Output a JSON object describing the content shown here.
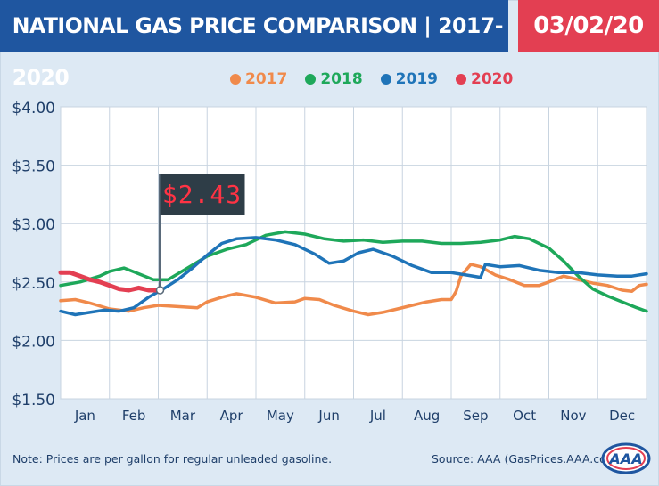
{
  "header": {
    "title": "NATIONAL GAS PRICE COMPARISON | 2017-2020",
    "date": "03/02/20"
  },
  "footer": {
    "note": "Note: Prices are per gallon for regular unleaded gasoline.",
    "source": "Source: AAA (GasPrices.AAA.com)",
    "logo_text": "AAA"
  },
  "colors": {
    "2017": "#f08a4b",
    "2018": "#1ea85a",
    "2019": "#1f74b8",
    "2020": "#e33f52",
    "header_blue": "#1f56a0",
    "header_red": "#e33f52"
  },
  "chart_data": {
    "type": "line",
    "title": "NATIONAL GAS PRICE COMPARISON | 2017-2020",
    "xlabel": "",
    "ylabel": "",
    "x_categories": [
      "Jan",
      "Feb",
      "Mar",
      "Apr",
      "May",
      "Jun",
      "Jul",
      "Aug",
      "Sep",
      "Oct",
      "Nov",
      "Dec"
    ],
    "x_range_months": [
      0,
      12
    ],
    "ylim": [
      1.5,
      4.0
    ],
    "y_ticks": [
      1.5,
      2.0,
      2.5,
      3.0,
      3.5,
      4.0
    ],
    "y_tick_labels": [
      "$1.50",
      "$2.00",
      "$2.50",
      "$3.00",
      "$3.50",
      "$4.00"
    ],
    "grid": true,
    "legend_position": "top-center",
    "series": [
      {
        "name": "2017",
        "color": "#f08a4b",
        "x": [
          0,
          0.3,
          0.6,
          1.0,
          1.4,
          1.7,
          2.0,
          2.4,
          2.8,
          3.0,
          3.3,
          3.6,
          4.0,
          4.4,
          4.8,
          5.0,
          5.3,
          5.6,
          6.0,
          6.3,
          6.6,
          6.9,
          7.2,
          7.5,
          7.8,
          8.0,
          8.1,
          8.2,
          8.4,
          8.6,
          8.9,
          9.2,
          9.5,
          9.8,
          10.0,
          10.3,
          10.6,
          10.9,
          11.2,
          11.5,
          11.7,
          11.85,
          12.0
        ],
        "values": [
          2.34,
          2.35,
          2.32,
          2.27,
          2.25,
          2.28,
          2.3,
          2.29,
          2.28,
          2.33,
          2.37,
          2.4,
          2.37,
          2.32,
          2.33,
          2.36,
          2.35,
          2.3,
          2.25,
          2.22,
          2.24,
          2.27,
          2.3,
          2.33,
          2.35,
          2.35,
          2.42,
          2.55,
          2.65,
          2.63,
          2.56,
          2.52,
          2.47,
          2.47,
          2.5,
          2.55,
          2.52,
          2.49,
          2.47,
          2.43,
          2.42,
          2.47,
          2.48
        ]
      },
      {
        "name": "2018",
        "color": "#1ea85a",
        "x": [
          0,
          0.4,
          0.8,
          1.0,
          1.3,
          1.6,
          1.9,
          2.2,
          2.6,
          3.0,
          3.4,
          3.8,
          4.2,
          4.6,
          5.0,
          5.4,
          5.8,
          6.2,
          6.6,
          7.0,
          7.4,
          7.8,
          8.2,
          8.6,
          9.0,
          9.3,
          9.6,
          10.0,
          10.3,
          10.6,
          10.9,
          11.2,
          11.5,
          11.8,
          12.0
        ],
        "values": [
          2.47,
          2.5,
          2.55,
          2.59,
          2.62,
          2.57,
          2.52,
          2.52,
          2.62,
          2.72,
          2.78,
          2.82,
          2.9,
          2.93,
          2.91,
          2.87,
          2.85,
          2.86,
          2.84,
          2.85,
          2.85,
          2.83,
          2.83,
          2.84,
          2.86,
          2.89,
          2.87,
          2.79,
          2.68,
          2.55,
          2.44,
          2.38,
          2.33,
          2.28,
          2.25
        ]
      },
      {
        "name": "2019",
        "color": "#1f74b8",
        "x": [
          0,
          0.3,
          0.6,
          0.9,
          1.2,
          1.5,
          1.8,
          2.1,
          2.4,
          2.7,
          3.0,
          3.3,
          3.6,
          4.0,
          4.4,
          4.8,
          5.2,
          5.5,
          5.8,
          6.1,
          6.4,
          6.8,
          7.2,
          7.6,
          8.0,
          8.3,
          8.6,
          8.7,
          9.0,
          9.4,
          9.8,
          10.2,
          10.6,
          11.0,
          11.4,
          11.7,
          12.0
        ],
        "values": [
          2.25,
          2.22,
          2.24,
          2.26,
          2.25,
          2.28,
          2.37,
          2.44,
          2.52,
          2.62,
          2.73,
          2.83,
          2.87,
          2.88,
          2.86,
          2.82,
          2.74,
          2.66,
          2.68,
          2.75,
          2.78,
          2.72,
          2.64,
          2.58,
          2.58,
          2.56,
          2.54,
          2.65,
          2.63,
          2.64,
          2.6,
          2.58,
          2.58,
          2.56,
          2.55,
          2.55,
          2.57
        ]
      },
      {
        "name": "2020",
        "color": "#e33f52",
        "x": [
          0,
          0.2,
          0.4,
          0.6,
          0.8,
          1.0,
          1.2,
          1.4,
          1.6,
          1.8,
          2.0
        ],
        "values": [
          2.58,
          2.58,
          2.55,
          2.52,
          2.5,
          2.47,
          2.44,
          2.43,
          2.45,
          2.43,
          2.43
        ]
      }
    ],
    "annotation": {
      "label": "$2.43",
      "x": 2.0,
      "value": 2.43
    }
  }
}
